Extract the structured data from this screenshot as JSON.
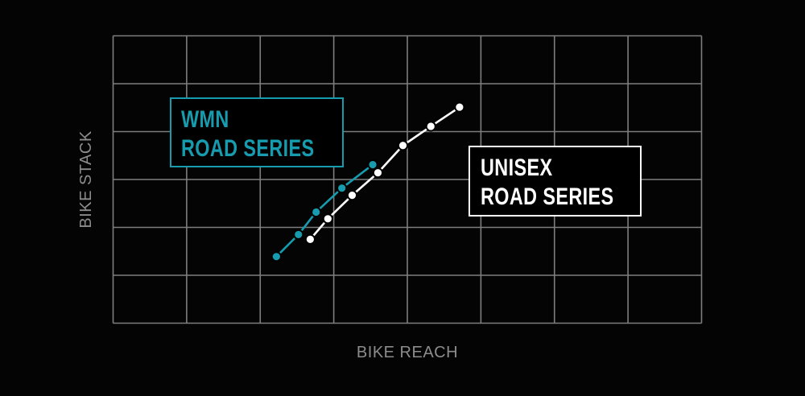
{
  "background_color": "#040404",
  "chart_data": {
    "type": "line",
    "title": "",
    "xlabel": "BIKE REACH",
    "ylabel": "BIKE STACK",
    "axis_label_color": "#8c8c8c",
    "grid": true,
    "grid_color": "#7e7e7e",
    "grid_cols": 8,
    "grid_rows": 6,
    "tick_labels": "none - both axes are unlabeled qualitative scales",
    "units": "grid-cell units measured from the bottom-left corner of the plot area",
    "series": [
      {
        "name": "WMN ROAD SERIES",
        "color": "#169cae",
        "marker": "circle",
        "points": [
          [
            2.22,
            1.39
          ],
          [
            2.52,
            1.85
          ],
          [
            2.76,
            2.32
          ],
          [
            3.11,
            2.82
          ],
          [
            3.53,
            3.31
          ]
        ]
      },
      {
        "name": "UNISEX ROAD SERIES",
        "color": "#ffffff",
        "marker": "circle",
        "points": [
          [
            2.68,
            1.75
          ],
          [
            2.92,
            2.18
          ],
          [
            3.25,
            2.67
          ],
          [
            3.6,
            3.14
          ],
          [
            3.94,
            3.71
          ],
          [
            4.32,
            4.11
          ],
          [
            4.71,
            4.51
          ]
        ]
      }
    ]
  },
  "legend": {
    "wmn": {
      "line1": "WMN",
      "line2": "ROAD SERIES",
      "color": "#169cae"
    },
    "unisex": {
      "line1": "UNISEX",
      "line2": "ROAD SERIES",
      "color": "#ffffff"
    }
  }
}
